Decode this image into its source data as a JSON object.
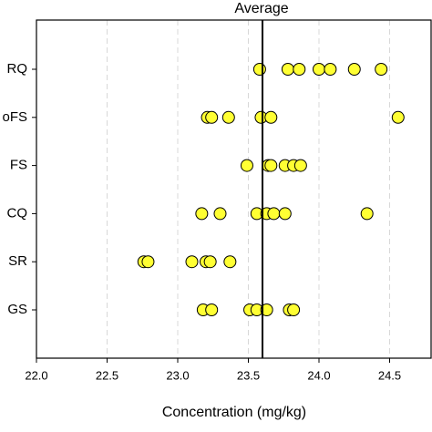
{
  "chart_data": {
    "type": "dotplot",
    "annotation": "Average",
    "xlabel": "Concentration (mg/kg)",
    "categories": [
      "RQ",
      "oFS",
      "FS",
      "CQ",
      "SR",
      "GS"
    ],
    "values": [
      [
        23.58,
        23.78,
        23.86,
        24.0,
        24.08,
        24.25,
        24.44
      ],
      [
        23.21,
        23.24,
        23.36,
        23.59,
        23.66,
        24.56
      ],
      [
        23.49,
        23.64,
        23.66,
        23.76,
        23.82,
        23.87
      ],
      [
        23.17,
        23.3,
        23.56,
        23.63,
        23.68,
        23.76,
        24.34
      ],
      [
        22.76,
        22.79,
        23.1,
        23.2,
        23.23,
        23.37
      ],
      [
        23.18,
        23.24,
        23.51,
        23.56,
        23.63,
        23.79,
        23.82
      ]
    ],
    "average": 23.6,
    "color": "#ffff33",
    "xlim": [
      22.0,
      24.8
    ],
    "xticks": [
      {
        "value": 22.0,
        "label": "22.0"
      },
      22.5,
      {
        "value": 23.0,
        "label": "23.0"
      },
      23.5,
      {
        "value": 24.0,
        "label": "24.0"
      },
      24.5
    ],
    "grid": true
  }
}
